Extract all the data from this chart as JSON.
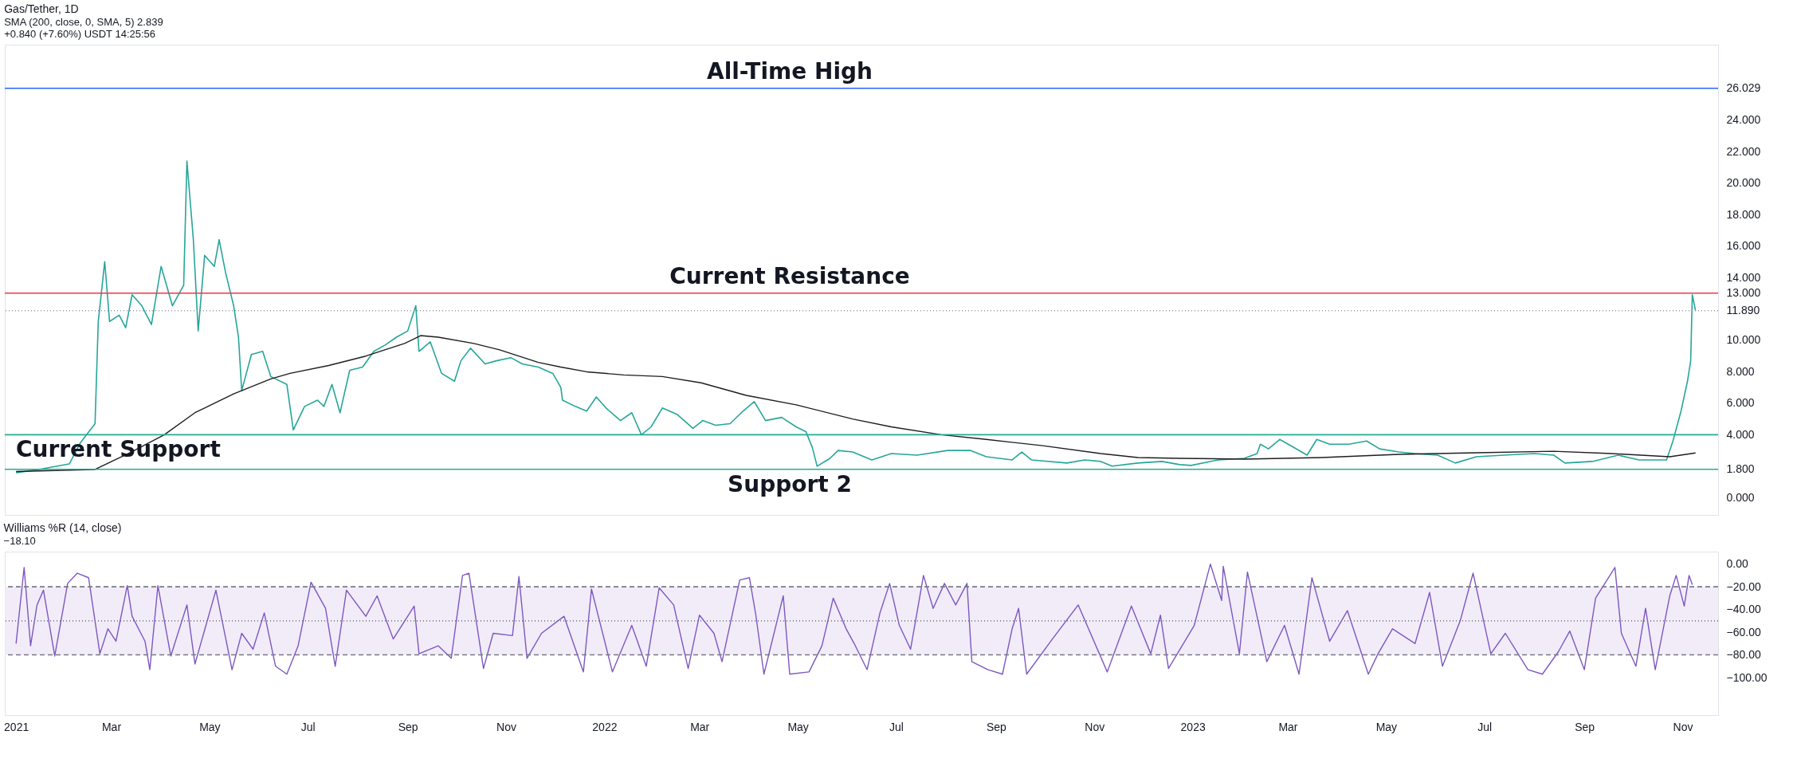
{
  "chart_data": [
    {
      "type": "line",
      "title": "Gas/Tether, 1D",
      "subtitle": "SMA (200, close, 0, SMA, 5) 2.839",
      "annotations": [
        "+0.840 (+7.60%)",
        "USDT",
        "14:25:56"
      ],
      "tick_labels": "y",
      "grid": false,
      "xlim": [
        "2020-12-25",
        "2023-11-23"
      ],
      "ylim": [
        -1.1,
        28.8
      ],
      "yticks": [
        {
          "value": 0,
          "label": "0.000"
        },
        {
          "value": 1.8,
          "label": "1.800"
        },
        {
          "value": 4,
          "label": "4.000"
        },
        {
          "value": 6,
          "label": "6.000"
        },
        {
          "value": 8,
          "label": "8.000"
        },
        {
          "value": 10,
          "label": "10.000"
        },
        {
          "value": 11.89,
          "label": "11.890"
        },
        {
          "value": 13,
          "label": "13.000"
        },
        {
          "value": 14,
          "label": "14.000"
        },
        {
          "value": 16,
          "label": "16.000"
        },
        {
          "value": 18,
          "label": "18.000"
        },
        {
          "value": 20,
          "label": "20.000"
        },
        {
          "value": 22,
          "label": "22.000"
        },
        {
          "value": 24,
          "label": "24.000"
        },
        {
          "value": 26.029,
          "label": "26.029"
        }
      ],
      "ref_lines": [
        {
          "axis": "y",
          "value": 26.029,
          "label": "All-Time High",
          "color": "#2962ff"
        },
        {
          "axis": "y",
          "value": 13,
          "label": "Current Resistance",
          "color": "#f23645"
        },
        {
          "axis": "y",
          "value": 11.89,
          "color": "#9598a1",
          "line_style": "dotted"
        },
        {
          "axis": "y",
          "value": 4,
          "label": "Current Support",
          "color": "#22ab94"
        },
        {
          "axis": "y",
          "value": 1.8,
          "label": "Support 2",
          "color": "#22ab94"
        }
      ],
      "series": [
        {
          "color": "#26a69a",
          "x": [
            "2021-01-01",
            "2021-01-17",
            "2021-02-03",
            "2021-02-10",
            "2021-02-19",
            "2021-02-21",
            "2021-02-25",
            "2021-02-28",
            "2021-03-06",
            "2021-03-10",
            "2021-03-14",
            "2021-03-20",
            "2021-03-26",
            "2021-04-01",
            "2021-04-08",
            "2021-04-15",
            "2021-04-17",
            "2021-04-21",
            "2021-04-24",
            "2021-04-28",
            "2021-05-04",
            "2021-05-07",
            "2021-05-11",
            "2021-05-16",
            "2021-05-19",
            "2021-05-21",
            "2021-05-27",
            "2021-06-03",
            "2021-06-08",
            "2021-06-18",
            "2021-06-22",
            "2021-06-29",
            "2021-07-07",
            "2021-07-11",
            "2021-07-16",
            "2021-07-21",
            "2021-07-27",
            "2021-08-04",
            "2021-08-11",
            "2021-08-18",
            "2021-08-25",
            "2021-09-01",
            "2021-09-06",
            "2021-09-08",
            "2021-09-15",
            "2021-09-22",
            "2021-09-30",
            "2021-10-04",
            "2021-10-10",
            "2021-10-19",
            "2021-10-26",
            "2021-11-04",
            "2021-11-11",
            "2021-11-21",
            "2021-11-30",
            "2021-12-05",
            "2021-12-06",
            "2021-12-14",
            "2021-12-21",
            "2021-12-27",
            "2022-01-02",
            "2022-01-11",
            "2022-01-18",
            "2022-01-24",
            "2022-01-30",
            "2022-02-06",
            "2022-02-15",
            "2022-02-25",
            "2022-03-03",
            "2022-03-11",
            "2022-03-20",
            "2022-03-28",
            "2022-04-04",
            "2022-04-11",
            "2022-04-21",
            "2022-04-30",
            "2022-05-06",
            "2022-05-10",
            "2022-05-13",
            "2022-05-21",
            "2022-05-26",
            "2022-06-04",
            "2022-06-16",
            "2022-06-28",
            "2022-07-14",
            "2022-08-02",
            "2022-08-16",
            "2022-08-26",
            "2022-09-11",
            "2022-09-17",
            "2022-09-23",
            "2022-10-15",
            "2022-10-26",
            "2022-11-05",
            "2022-11-12",
            "2022-11-28",
            "2022-12-13",
            "2022-12-24",
            "2022-12-31",
            "2023-01-17",
            "2023-02-02",
            "2023-02-10",
            "2023-02-12",
            "2023-02-17",
            "2023-02-24",
            "2023-03-03",
            "2023-03-13",
            "2023-03-19",
            "2023-03-27",
            "2023-04-08",
            "2023-04-19",
            "2023-04-27",
            "2023-05-09",
            "2023-05-19",
            "2023-06-02",
            "2023-06-13",
            "2023-06-26",
            "2023-07-13",
            "2023-08-01",
            "2023-08-13",
            "2023-08-20",
            "2023-09-06",
            "2023-09-22",
            "2023-10-05",
            "2023-10-22",
            "2023-10-26",
            "2023-10-31",
            "2023-11-04",
            "2023-11-06",
            "2023-11-07",
            "2023-11-09"
          ],
          "values": [
            1.58,
            1.83,
            2.14,
            3.5,
            4.7,
            11.2,
            15.0,
            11.2,
            11.6,
            10.8,
            12.9,
            12.2,
            11.0,
            14.7,
            12.2,
            13.5,
            21.4,
            16.4,
            10.6,
            15.4,
            14.7,
            16.4,
            14.3,
            12.2,
            10.2,
            6.8,
            9.1,
            9.3,
            7.7,
            7.2,
            4.3,
            5.8,
            6.2,
            5.8,
            7.2,
            5.4,
            8.1,
            8.3,
            9.3,
            9.7,
            10.2,
            10.6,
            12.2,
            9.3,
            9.9,
            7.9,
            7.4,
            8.7,
            9.5,
            8.5,
            8.7,
            8.9,
            8.5,
            8.3,
            7.9,
            7.0,
            6.2,
            5.8,
            5.5,
            6.4,
            5.7,
            4.9,
            5.4,
            4.0,
            4.5,
            5.7,
            5.3,
            4.4,
            4.9,
            4.6,
            4.7,
            5.5,
            6.1,
            4.9,
            5.1,
            4.5,
            4.2,
            3.2,
            2.0,
            2.5,
            3.0,
            2.9,
            2.4,
            2.8,
            2.7,
            3.0,
            3.0,
            2.6,
            2.4,
            2.9,
            2.4,
            2.2,
            2.4,
            2.3,
            2.0,
            2.2,
            2.3,
            2.1,
            2.05,
            2.4,
            2.5,
            2.8,
            3.4,
            3.1,
            3.7,
            3.3,
            2.7,
            3.7,
            3.4,
            3.4,
            3.6,
            3.1,
            2.9,
            2.8,
            2.7,
            2.2,
            2.6,
            2.7,
            2.8,
            2.7,
            2.2,
            2.3,
            2.7,
            2.4,
            2.4,
            3.6,
            5.5,
            7.4,
            8.7,
            12.9,
            11.89
          ]
        },
        {
          "color": "#1e1e1e",
          "x": [
            "2021-01-01",
            "2021-02-19",
            "2021-03-13",
            "2021-04-03",
            "2021-04-22",
            "2021-05-16",
            "2021-06-08",
            "2021-06-20",
            "2021-07-14",
            "2021-08-06",
            "2021-08-30",
            "2021-09-09",
            "2021-09-20",
            "2021-10-12",
            "2021-10-28",
            "2021-11-21",
            "2021-12-05",
            "2021-12-21",
            "2022-01-13",
            "2022-02-06",
            "2022-03-02",
            "2022-03-30",
            "2022-04-30",
            "2022-06-04",
            "2022-06-28",
            "2022-07-29",
            "2022-08-26",
            "2022-09-30",
            "2022-11-05",
            "2022-11-28",
            "2022-12-24",
            "2023-02-02",
            "2023-03-22",
            "2023-05-09",
            "2023-06-26",
            "2023-08-13",
            "2023-09-18",
            "2023-10-24",
            "2023-11-09"
          ],
          "values": [
            1.66,
            1.79,
            2.87,
            4.0,
            5.4,
            6.6,
            7.55,
            7.9,
            8.4,
            9.0,
            9.8,
            10.3,
            10.2,
            9.8,
            9.4,
            8.6,
            8.3,
            8.0,
            7.8,
            7.7,
            7.3,
            6.5,
            5.9,
            5.0,
            4.5,
            4.0,
            3.7,
            3.3,
            2.8,
            2.55,
            2.5,
            2.45,
            2.55,
            2.75,
            2.85,
            2.95,
            2.8,
            2.6,
            2.84
          ]
        }
      ]
    },
    {
      "type": "line",
      "title": "Williams %R (14, close)",
      "annotations": [
        "−18.10"
      ],
      "grid": false,
      "xlim": [
        "2020-12-25",
        "2023-11-23"
      ],
      "xticks": [
        {
          "value": "2021-01-01",
          "label": "2021"
        },
        {
          "value": "2021-03-01",
          "label": "Mar"
        },
        {
          "value": "2021-05-01",
          "label": "May"
        },
        {
          "value": "2021-07-01",
          "label": "Jul"
        },
        {
          "value": "2021-09-01",
          "label": "Sep"
        },
        {
          "value": "2021-11-01",
          "label": "Nov"
        },
        {
          "value": "2022-01-01",
          "label": "2022"
        },
        {
          "value": "2022-03-01",
          "label": "Mar"
        },
        {
          "value": "2022-05-01",
          "label": "May"
        },
        {
          "value": "2022-07-01",
          "label": "Jul"
        },
        {
          "value": "2022-09-01",
          "label": "Sep"
        },
        {
          "value": "2022-11-01",
          "label": "Nov"
        },
        {
          "value": "2023-01-01",
          "label": "2023"
        },
        {
          "value": "2023-03-01",
          "label": "Mar"
        },
        {
          "value": "2023-05-01",
          "label": "May"
        },
        {
          "value": "2023-07-01",
          "label": "Jul"
        },
        {
          "value": "2023-09-01",
          "label": "Sep"
        },
        {
          "value": "2023-11-01",
          "label": "Nov"
        }
      ],
      "ylim": [
        -133,
        11
      ],
      "yticks": [
        {
          "value": 0,
          "label": "0.00"
        },
        {
          "value": -20,
          "label": "−20.00"
        },
        {
          "value": -40,
          "label": "−40.00"
        },
        {
          "value": -60,
          "label": "−60.00"
        },
        {
          "value": -80,
          "label": "−80.00"
        },
        {
          "value": -100,
          "label": "−100.00"
        }
      ],
      "bands": [
        {
          "axis": "y",
          "from": -80,
          "to": -20,
          "color": "#ede7f6"
        }
      ],
      "ref_lines": [
        {
          "axis": "y",
          "value": -20,
          "color": "#787b86",
          "line_style": "dashed"
        },
        {
          "axis": "y",
          "value": -50,
          "color": "#787b86",
          "line_style": "dotted"
        },
        {
          "axis": "y",
          "value": -80,
          "color": "#787b86",
          "line_style": "dashed"
        }
      ],
      "series": [
        {
          "color": "#7e57c2",
          "x": [
            "2021-01-01",
            "2021-01-06",
            "2021-01-10",
            "2021-01-14",
            "2021-01-18",
            "2021-01-25",
            "2021-02-02",
            "2021-02-08",
            "2021-02-15",
            "2021-02-22",
            "2021-02-27",
            "2021-03-04",
            "2021-03-11",
            "2021-03-14",
            "2021-03-22",
            "2021-03-25",
            "2021-03-30",
            "2021-04-07",
            "2021-04-17",
            "2021-04-22",
            "2021-05-05",
            "2021-05-15",
            "2021-05-21",
            "2021-05-28",
            "2021-06-04",
            "2021-06-11",
            "2021-06-18",
            "2021-06-25",
            "2021-07-03",
            "2021-07-12",
            "2021-07-18",
            "2021-07-25",
            "2021-08-06",
            "2021-08-13",
            "2021-08-23",
            "2021-09-05",
            "2021-09-08",
            "2021-09-20",
            "2021-09-28",
            "2021-10-05",
            "2021-10-09",
            "2021-10-18",
            "2021-10-24",
            "2021-11-05",
            "2021-11-09",
            "2021-11-14",
            "2021-11-23",
            "2021-12-07",
            "2021-12-19",
            "2021-12-24",
            "2022-01-06",
            "2022-01-18",
            "2022-01-27",
            "2022-02-04",
            "2022-02-13",
            "2022-02-22",
            "2022-03-01",
            "2022-03-10",
            "2022-03-15",
            "2022-03-26",
            "2022-04-01",
            "2022-04-05",
            "2022-04-10",
            "2022-04-22",
            "2022-04-26",
            "2022-05-08",
            "2022-05-16",
            "2022-05-23",
            "2022-05-31",
            "2022-06-05",
            "2022-06-13",
            "2022-06-21",
            "2022-06-27",
            "2022-07-03",
            "2022-07-10",
            "2022-07-18",
            "2022-07-24",
            "2022-07-31",
            "2022-08-07",
            "2022-08-14",
            "2022-08-17",
            "2022-08-27",
            "2022-09-05",
            "2022-09-11",
            "2022-09-15",
            "2022-09-20",
            "2022-10-06",
            "2022-10-22",
            "2022-11-09",
            "2022-11-24",
            "2022-12-06",
            "2022-12-12",
            "2022-12-17",
            "2023-01-02",
            "2023-01-12",
            "2023-01-19",
            "2023-01-20",
            "2023-01-30",
            "2023-02-04",
            "2023-02-16",
            "2023-02-27",
            "2023-03-08",
            "2023-03-16",
            "2023-03-27",
            "2023-04-07",
            "2023-04-20",
            "2023-04-26",
            "2023-05-05",
            "2023-05-19",
            "2023-05-28",
            "2023-06-05",
            "2023-06-16",
            "2023-06-24",
            "2023-07-05",
            "2023-07-14",
            "2023-07-28",
            "2023-08-06",
            "2023-08-16",
            "2023-08-23",
            "2023-09-01",
            "2023-09-08",
            "2023-09-20",
            "2023-09-24",
            "2023-10-03",
            "2023-10-09",
            "2023-10-15",
            "2023-10-24",
            "2023-10-28",
            "2023-11-02",
            "2023-11-05",
            "2023-11-07"
          ],
          "values": [
            -70,
            -3,
            -72,
            -36,
            -23,
            -81,
            -17,
            -8,
            -12,
            -79,
            -57,
            -68,
            -19,
            -46,
            -68,
            -93,
            -19,
            -81,
            -36,
            -88,
            -23,
            -93,
            -61,
            -75,
            -43,
            -90,
            -97,
            -72,
            -16,
            -39,
            -90,
            -23,
            -46,
            -28,
            -66,
            -37,
            -79,
            -72,
            -83,
            -10,
            -8,
            -92,
            -61,
            -63,
            -11,
            -83,
            -61,
            -46,
            -95,
            -22,
            -95,
            -54,
            -90,
            -21,
            -36,
            -92,
            -45,
            -61,
            -86,
            -14,
            -12,
            -45,
            -97,
            -28,
            -97,
            -95,
            -72,
            -30,
            -57,
            -70,
            -93,
            -43,
            -17,
            -54,
            -75,
            -10,
            -39,
            -17,
            -36,
            -17,
            -86,
            -93,
            -97,
            -57,
            -39,
            -97,
            -66,
            -36,
            -95,
            -37,
            -79,
            -45,
            -92,
            -54,
            0,
            -32,
            -2,
            -79,
            -7,
            -86,
            -54,
            -97,
            -12,
            -68,
            -41,
            -97,
            -79,
            -57,
            -70,
            -25,
            -90,
            -50,
            -8,
            -79,
            -61,
            -93,
            -97,
            -77,
            -59,
            -93,
            -30,
            -3,
            -61,
            -90,
            -39,
            -93,
            -28,
            -10,
            -37,
            -10,
            -18.1
          ]
        }
      ]
    }
  ]
}
